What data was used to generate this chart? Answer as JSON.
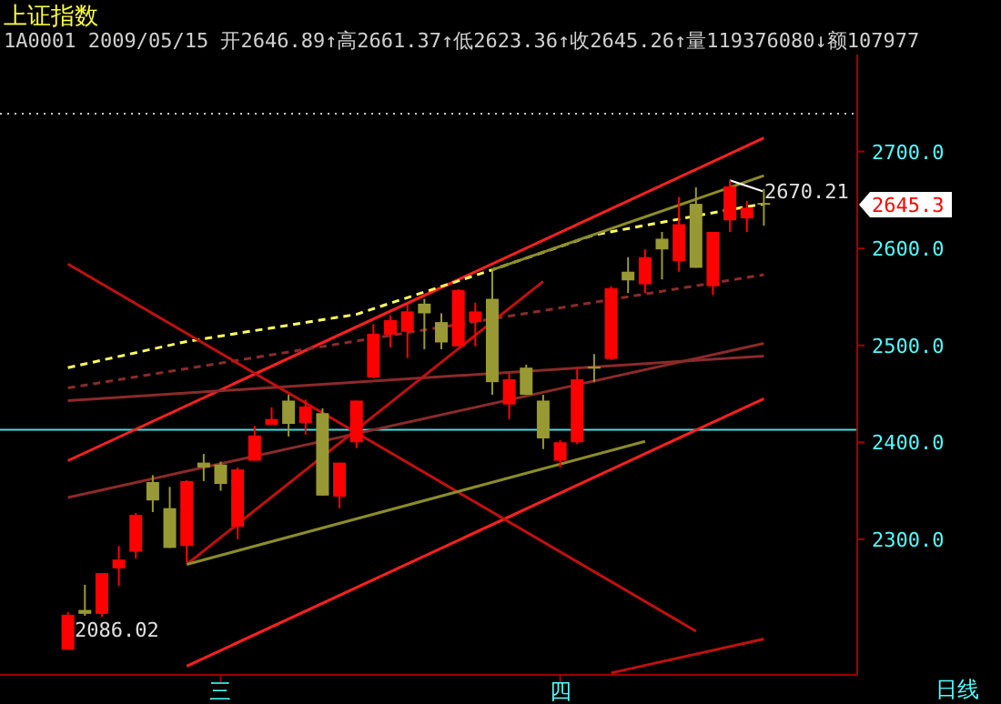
{
  "chart_data": {
    "type": "candlestick",
    "title": "上证指数",
    "subtitle": "1A0001 2009/05/15 开2646.89↑高2661.37↑低2623.36↑收2645.26↑量119376080↓额107977",
    "categories": [
      null,
      null,
      null,
      null,
      null,
      null,
      null,
      null,
      null,
      "三",
      null,
      null,
      null,
      null,
      null,
      null,
      null,
      null,
      null,
      null,
      null,
      null,
      null,
      null,
      null,
      null,
      null,
      null,
      null,
      "四",
      null,
      null,
      null,
      null,
      null,
      null,
      null,
      null,
      null,
      null,
      null,
      null
    ],
    "ohlc": [
      [
        2186,
        2225,
        2186,
        2222
      ],
      [
        2227,
        2253,
        2221,
        2223
      ],
      [
        2223,
        2265,
        2220,
        2265
      ],
      [
        2270,
        2293,
        2252,
        2279
      ],
      [
        2287,
        2327,
        2280,
        2325
      ],
      [
        2359,
        2366,
        2328,
        2340
      ],
      [
        2332,
        2354,
        2291,
        2291
      ],
      [
        2293,
        2361,
        2276,
        2360
      ],
      [
        2379,
        2388,
        2360,
        2374
      ],
      [
        2377,
        2380,
        2350,
        2357
      ],
      [
        2313,
        2374,
        2300,
        2372
      ],
      [
        2381,
        2417,
        2381,
        2407
      ],
      [
        2418,
        2436,
        2418,
        2424
      ],
      [
        2443,
        2449,
        2406,
        2419
      ],
      [
        2420,
        2444,
        2408,
        2437
      ],
      [
        2430,
        2435,
        2345,
        2345
      ],
      [
        2344,
        2379,
        2332,
        2379
      ],
      [
        2400,
        2443,
        2394,
        2443
      ],
      [
        2467,
        2522,
        2466,
        2512
      ],
      [
        2511,
        2531,
        2498,
        2526
      ],
      [
        2514,
        2542,
        2487,
        2535
      ],
      [
        2543,
        2548,
        2496,
        2533
      ],
      [
        2524,
        2533,
        2496,
        2503
      ],
      [
        2499,
        2558,
        2499,
        2557
      ],
      [
        2524,
        2544,
        2499,
        2535
      ],
      [
        2548,
        2579,
        2449,
        2462
      ],
      [
        2439,
        2471,
        2424,
        2465
      ],
      [
        2477,
        2480,
        2449,
        2449
      ],
      [
        2443,
        2449,
        2393,
        2404
      ],
      [
        2381,
        2402,
        2374,
        2400
      ],
      [
        2400,
        2477,
        2398,
        2465
      ],
      [
        2478,
        2491,
        2462,
        2476
      ],
      [
        2486,
        2561,
        2485,
        2559
      ],
      [
        2576,
        2591,
        2554,
        2567
      ],
      [
        2563,
        2599,
        2554,
        2591
      ],
      [
        2610,
        2617,
        2568,
        2599
      ],
      [
        2587,
        2653,
        2576,
        2625
      ],
      [
        2646,
        2663,
        2580,
        2580
      ],
      [
        2561,
        2617,
        2552,
        2617
      ],
      [
        2629,
        2670.21,
        2617,
        2664
      ],
      [
        2631,
        2649,
        2617,
        2642
      ],
      [
        2646.89,
        2661.37,
        2623.36,
        2645.26
      ]
    ],
    "colors": [
      "#ff0000",
      "#999933",
      "#ff0000",
      "#ff0000",
      "#ff0000",
      "#999933",
      "#999933",
      "#ff0000",
      "#999933",
      "#999933",
      "#ff0000",
      "#ff0000",
      "#ff0000",
      "#999933",
      "#ff0000",
      "#999933",
      "#ff0000",
      "#ff0000",
      "#ff0000",
      "#ff0000",
      "#ff0000",
      "#999933",
      "#999933",
      "#ff0000",
      "#ff0000",
      "#999933",
      "#ff0000",
      "#999933",
      "#999933",
      "#ff0000",
      "#ff0000",
      "#999933",
      "#ff0000",
      "#999933",
      "#ff0000",
      "#999933",
      "#ff0000",
      "#999933",
      "#ff0000",
      "#ff0000",
      "#ff0000",
      "#999933"
    ],
    "series": [
      {
        "type": "line",
        "color": "#ff2020",
        "line_style": "solid",
        "values": [
          2381,
          null,
          null,
          null,
          null,
          null,
          null,
          null,
          null,
          null,
          null,
          null,
          null,
          null,
          null,
          null,
          null,
          null,
          null,
          null,
          null,
          null,
          null,
          null,
          null,
          null,
          null,
          null,
          null,
          null,
          null,
          null,
          null,
          null,
          null,
          null,
          null,
          null,
          null,
          null,
          null,
          2714
        ]
      },
      {
        "type": "line",
        "color": "#ff2020",
        "line_style": "solid",
        "values": [
          null,
          null,
          null,
          null,
          null,
          null,
          null,
          2169,
          null,
          null,
          null,
          null,
          null,
          null,
          null,
          null,
          null,
          null,
          null,
          null,
          null,
          null,
          null,
          null,
          null,
          null,
          null,
          null,
          null,
          null,
          null,
          null,
          null,
          null,
          null,
          null,
          null,
          null,
          null,
          null,
          null,
          2445
        ]
      },
      {
        "type": "line",
        "color": "#8b2a2a",
        "line_style": "dashed",
        "values": [
          2456,
          null,
          null,
          null,
          null,
          null,
          null,
          null,
          null,
          null,
          null,
          null,
          null,
          null,
          null,
          null,
          null,
          null,
          null,
          null,
          null,
          null,
          null,
          null,
          null,
          null,
          null,
          null,
          null,
          null,
          null,
          null,
          null,
          null,
          null,
          null,
          null,
          null,
          null,
          null,
          null,
          2573
        ]
      },
      {
        "type": "line",
        "color": "#8b2a2a",
        "line_style": "solid",
        "values": [
          2443,
          null,
          null,
          null,
          null,
          null,
          null,
          null,
          null,
          null,
          null,
          null,
          null,
          null,
          null,
          null,
          null,
          null,
          null,
          null,
          null,
          null,
          null,
          null,
          null,
          null,
          null,
          null,
          null,
          null,
          null,
          null,
          null,
          null,
          null,
          null,
          null,
          null,
          null,
          null,
          null,
          2489
        ]
      },
      {
        "type": "line",
        "color": "#8b2a2a",
        "line_style": "solid",
        "values": [
          2343,
          null,
          null,
          null,
          null,
          null,
          null,
          null,
          null,
          null,
          null,
          null,
          null,
          null,
          null,
          null,
          null,
          null,
          null,
          null,
          null,
          null,
          null,
          null,
          null,
          null,
          null,
          null,
          null,
          null,
          null,
          null,
          null,
          null,
          null,
          null,
          null,
          null,
          null,
          null,
          null,
          2502
        ]
      },
      {
        "type": "line",
        "color": "#ffff60",
        "line_style": "dashed",
        "values": [
          2477,
          null,
          null,
          null,
          null,
          null,
          null,
          2504,
          null,
          null,
          null,
          null,
          null,
          null,
          null,
          null,
          null,
          2532,
          null,
          null,
          null,
          null,
          null,
          null,
          null,
          2578,
          null,
          null,
          null,
          null,
          null,
          2614,
          null,
          null,
          null,
          null,
          null,
          null,
          null,
          2640,
          null,
          2646
        ]
      },
      {
        "type": "line",
        "color": "#c01010",
        "line_style": "solid",
        "values": [
          null,
          null,
          null,
          null,
          null,
          null,
          null,
          null,
          null,
          null,
          null,
          null,
          null,
          null,
          null,
          null,
          null,
          null,
          null,
          null,
          null,
          null,
          null,
          null,
          null,
          null,
          null,
          null,
          null,
          null,
          null,
          null,
          2162,
          null,
          null,
          null,
          null,
          null,
          null,
          null,
          null,
          2197
        ]
      },
      {
        "type": "line",
        "color": "#c01010",
        "line_style": "solid",
        "values": [
          2584,
          null,
          null,
          null,
          null,
          null,
          null,
          null,
          null,
          null,
          null,
          null,
          null,
          null,
          null,
          null,
          null,
          null,
          null,
          null,
          null,
          null,
          null,
          null,
          null,
          null,
          null,
          null,
          null,
          null,
          null,
          null,
          null,
          null,
          null,
          null,
          null,
          2205,
          null,
          null,
          null,
          null
        ]
      },
      {
        "type": "line",
        "color": "#c01010",
        "line_style": "solid",
        "values": [
          null,
          null,
          null,
          null,
          null,
          null,
          null,
          2274,
          null,
          null,
          null,
          null,
          null,
          null,
          null,
          null,
          null,
          null,
          null,
          null,
          null,
          null,
          null,
          null,
          null,
          null,
          null,
          null,
          2566,
          null,
          null,
          null,
          null,
          null,
          null,
          null,
          null,
          null,
          null,
          null,
          null,
          null
        ]
      },
      {
        "type": "line",
        "color": "#8c8c2a",
        "line_style": "solid",
        "values": [
          null,
          null,
          null,
          null,
          null,
          null,
          null,
          2274,
          null,
          null,
          null,
          null,
          null,
          null,
          null,
          null,
          null,
          null,
          null,
          null,
          null,
          null,
          null,
          null,
          null,
          null,
          null,
          null,
          null,
          null,
          null,
          null,
          null,
          null,
          2401,
          null,
          null,
          null,
          null,
          null,
          null,
          null
        ]
      },
      {
        "type": "line",
        "color": "#8c8c2a",
        "line_style": "solid",
        "values": [
          null,
          null,
          null,
          null,
          null,
          null,
          null,
          null,
          null,
          null,
          null,
          null,
          null,
          null,
          null,
          null,
          null,
          null,
          null,
          null,
          null,
          null,
          null,
          null,
          null,
          2578,
          null,
          null,
          null,
          null,
          null,
          null,
          null,
          null,
          null,
          null,
          null,
          null,
          null,
          null,
          null,
          2675
        ]
      }
    ],
    "ref_lines": [
      {
        "axis": "y",
        "value": 2413,
        "color": "#40e0e0",
        "line_style": "solid"
      },
      {
        "axis": "y",
        "value": 2739,
        "color": "#c8c8c8",
        "line_style": "dotted"
      }
    ],
    "ylim": [
      2160,
      2800
    ],
    "yticks": [
      {
        "value": 2300,
        "label": "2300.0"
      },
      {
        "value": 2400,
        "label": "2400.0"
      },
      {
        "value": 2500,
        "label": "2500.0"
      },
      {
        "value": 2600,
        "label": "2600.0"
      },
      {
        "value": 2700,
        "label": "2700.0"
      }
    ],
    "annotations": [
      "2670.21",
      "2645.3",
      "2086.02",
      "日线"
    ]
  }
}
